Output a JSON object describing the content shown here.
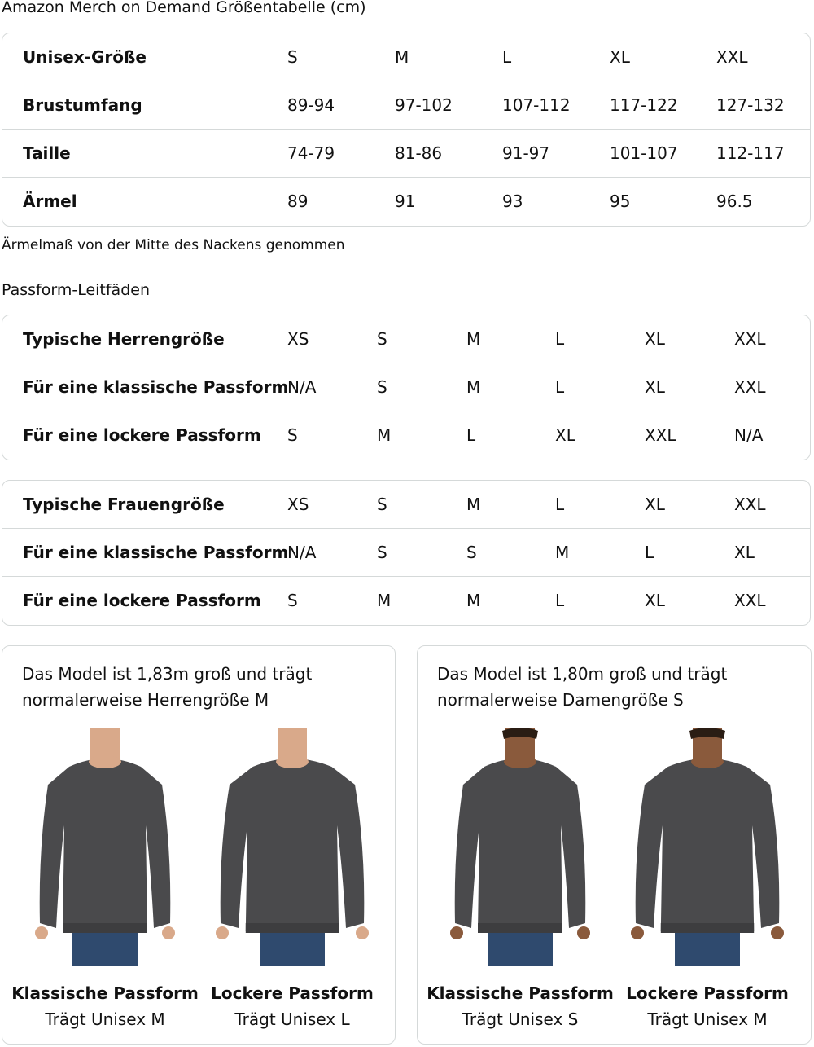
{
  "title": "Amazon Merch on Demand Größentabelle (cm)",
  "size_table": {
    "rows": [
      {
        "label": "Unisex-Größe",
        "values": [
          "S",
          "M",
          "L",
          "XL",
          "XXL"
        ]
      },
      {
        "label": "Brustumfang",
        "values": [
          "89-94",
          "97-102",
          "107-112",
          "117-122",
          "127-132"
        ]
      },
      {
        "label": "Taille",
        "values": [
          "74-79",
          "81-86",
          "91-97",
          "101-107",
          "112-117"
        ]
      },
      {
        "label": "Ärmel",
        "values": [
          "89",
          "91",
          "93",
          "95",
          "96.5"
        ]
      }
    ]
  },
  "note": "Ärmelmaß von der Mitte des Nackens genommen",
  "fit_title": "Passform-Leitfäden",
  "men_table": {
    "rows": [
      {
        "label": "Typische Herrengröße",
        "values": [
          "XS",
          "S",
          "M",
          "L",
          "XL",
          "XXL"
        ]
      },
      {
        "label": "Für eine klassische Passform",
        "values": [
          "N/A",
          "S",
          "M",
          "L",
          "XL",
          "XXL"
        ]
      },
      {
        "label": "Für eine lockere Passform",
        "values": [
          "S",
          "M",
          "L",
          "XL",
          "XXL",
          "N/A"
        ]
      }
    ]
  },
  "women_table": {
    "rows": [
      {
        "label": "Typische Frauengröße",
        "values": [
          "XS",
          "S",
          "M",
          "L",
          "XL",
          "XXL"
        ]
      },
      {
        "label": "Für eine klassische Passform",
        "values": [
          "N/A",
          "S",
          "S",
          "M",
          "L",
          "XL"
        ]
      },
      {
        "label": "Für eine lockere Passform",
        "values": [
          "S",
          "M",
          "M",
          "L",
          "XL",
          "XXL"
        ]
      }
    ]
  },
  "cards": [
    {
      "line1": "Das Model ist 1,83m groß und trägt",
      "line2": "normalerweise Herrengröße M",
      "figures": [
        {
          "title": "Klassische Passform",
          "sub": "Trägt Unisex M"
        },
        {
          "title": "Lockere Passform",
          "sub": "Trägt Unisex L"
        }
      ]
    },
    {
      "line1": "Das Model ist 1,80m groß und trägt",
      "line2": "normalerweise Damengröße S",
      "figures": [
        {
          "title": "Klassische Passform",
          "sub": "Trägt Unisex S"
        },
        {
          "title": "Lockere Passform",
          "sub": "Trägt Unisex M"
        }
      ]
    }
  ],
  "colors": {
    "border": "#d5d9d9",
    "sweatshirt": "#4a4a4c",
    "jeans": "#2f4a6e"
  }
}
